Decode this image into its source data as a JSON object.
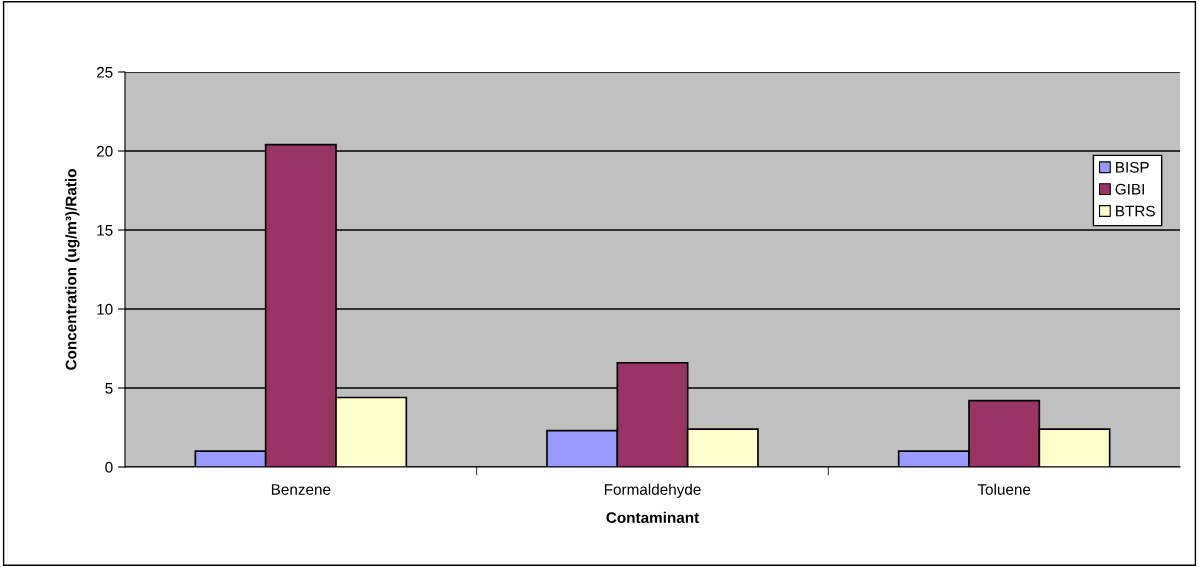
{
  "chart_data": {
    "type": "bar",
    "xlabel": "Contaminant",
    "ylabel": "Concentration (ug/m³)/Ratio",
    "categories": [
      "Benzene",
      "Formaldehyde",
      "Toluene"
    ],
    "series": [
      {
        "name": "BISP",
        "color": "#9999ff",
        "values": [
          1.0,
          2.3,
          1.0
        ]
      },
      {
        "name": "GIBI",
        "color": "#993366",
        "values": [
          20.4,
          6.6,
          4.2
        ]
      },
      {
        "name": "BTRS",
        "color": "#ffffcc",
        "values": [
          4.4,
          2.4,
          2.4
        ]
      }
    ],
    "ylim": [
      0,
      25
    ],
    "yticks": [
      0,
      5,
      10,
      15,
      20,
      25
    ],
    "grid": "y",
    "legend": "right"
  }
}
